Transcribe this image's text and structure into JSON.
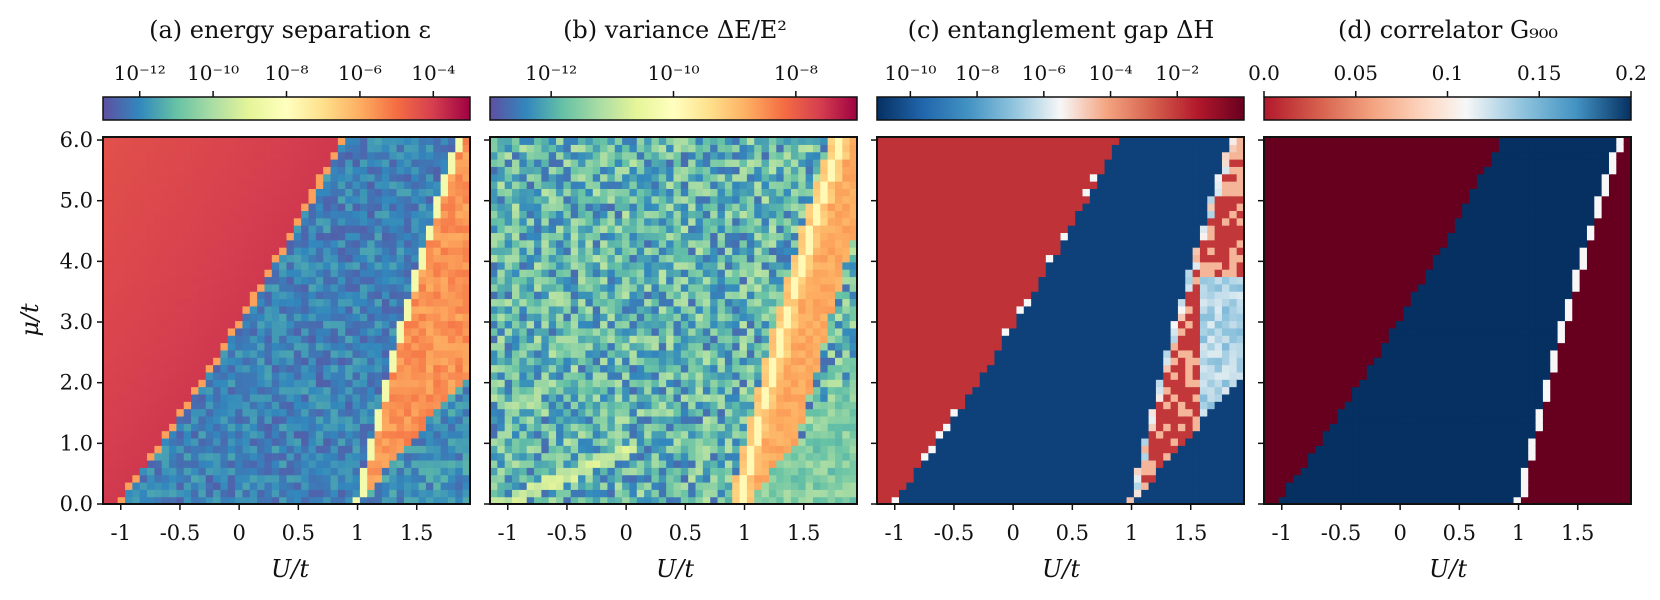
{
  "figure": {
    "ylabel": "μ/t",
    "xlabel": "U/t"
  },
  "chart_data": [
    {
      "type": "heatmap",
      "title": "(a) energy separation ε",
      "xlabel": "U/t",
      "ylabel": "μ/t",
      "xlim": [
        -1.15,
        1.95
      ],
      "ylim": [
        0,
        6.05
      ],
      "x_ticks": [
        -1,
        -0.5,
        0,
        0.5,
        1,
        1.5
      ],
      "x_tick_labels": [
        "-1",
        "-0.5",
        "0",
        "0.5",
        "1",
        "1.5"
      ],
      "y_ticks": [
        0,
        1,
        2,
        3,
        4,
        5,
        6
      ],
      "y_tick_labels": [
        "0.0",
        "1.0",
        "2.0",
        "3.0",
        "4.0",
        "5.0",
        "6.0"
      ],
      "colorbar": {
        "cmap": "Spectral_r",
        "scale": "log",
        "range": [
          1e-13,
          0.001
        ],
        "ticks": [
          1e-12,
          1e-10,
          1e-08,
          1e-06,
          0.0001
        ],
        "tick_labels": [
          "10⁻¹²",
          "10⁻¹⁰",
          "10⁻⁸",
          "10⁻⁶",
          "10⁻⁴"
        ]
      },
      "regions": [
        {
          "name": "upper-left phase",
          "value": 0.0003
        },
        {
          "name": "central band",
          "value": 1e-12
        },
        {
          "name": "right wedge",
          "value": 2e-06
        }
      ]
    },
    {
      "type": "heatmap",
      "title": "(b) variance ΔE/E²",
      "xlabel": "U/t",
      "xlim": [
        -1.15,
        1.95
      ],
      "ylim": [
        0,
        6.05
      ],
      "x_ticks": [
        -1,
        -0.5,
        0,
        0.5,
        1,
        1.5
      ],
      "x_tick_labels": [
        "-1",
        "-0.5",
        "0",
        "0.5",
        "1",
        "1.5"
      ],
      "colorbar": {
        "cmap": "Spectral_r",
        "scale": "log",
        "range": [
          1e-13,
          1e-07
        ],
        "ticks": [
          1e-12,
          1e-10,
          1e-08
        ],
        "tick_labels": [
          "10⁻¹²",
          "10⁻¹⁰",
          "10⁻⁸"
        ]
      },
      "regions": [
        {
          "name": "background noise",
          "value": 1e-11
        },
        {
          "name": "transition ridge",
          "value": 1e-08
        },
        {
          "name": "right wedge",
          "value": 1e-10
        }
      ]
    },
    {
      "type": "heatmap",
      "title": "(c) entanglement gap ΔH",
      "xlabel": "U/t",
      "xlim": [
        -1.15,
        1.95
      ],
      "ylim": [
        0,
        6.05
      ],
      "x_ticks": [
        -1,
        -0.5,
        0,
        0.5,
        1,
        1.5
      ],
      "x_tick_labels": [
        "-1",
        "-0.5",
        "0",
        "0.5",
        "1",
        "1.5"
      ],
      "colorbar": {
        "cmap": "RdBu",
        "scale": "log",
        "range": [
          1e-11,
          1
        ],
        "ticks": [
          1e-10,
          1e-08,
          1e-06,
          0.0001,
          0.01
        ],
        "tick_labels": [
          "10⁻¹⁰",
          "10⁻⁸",
          "10⁻⁶",
          "10⁻⁴",
          "10⁻²"
        ]
      },
      "regions": [
        {
          "name": "upper-left phase",
          "value": 0.5
        },
        {
          "name": "central band",
          "value": 1e-11
        },
        {
          "name": "right wedge",
          "value": 0.001
        }
      ]
    },
    {
      "type": "heatmap",
      "title": "(d) correlator G₉₀₀",
      "xlabel": "U/t",
      "xlim": [
        -1.15,
        1.95
      ],
      "ylim": [
        0,
        6.05
      ],
      "x_ticks": [
        -1,
        -0.5,
        0,
        0.5,
        1,
        1.5
      ],
      "x_tick_labels": [
        "-1",
        "-0.5",
        "0",
        "0.5",
        "1",
        "1.5"
      ],
      "colorbar": {
        "cmap": "RdBu",
        "scale": "linear",
        "range": [
          0,
          0.2
        ],
        "ticks": [
          0,
          0.05,
          0.1,
          0.15,
          0.2
        ],
        "tick_labels": [
          "0.0",
          "0.05",
          "0.1",
          "0.15",
          "0.2"
        ]
      },
      "regions": [
        {
          "name": "upper-left phase",
          "value": 0.0
        },
        {
          "name": "central band",
          "value": 0.2
        },
        {
          "name": "right wedge",
          "value": 0.0
        }
      ]
    }
  ]
}
